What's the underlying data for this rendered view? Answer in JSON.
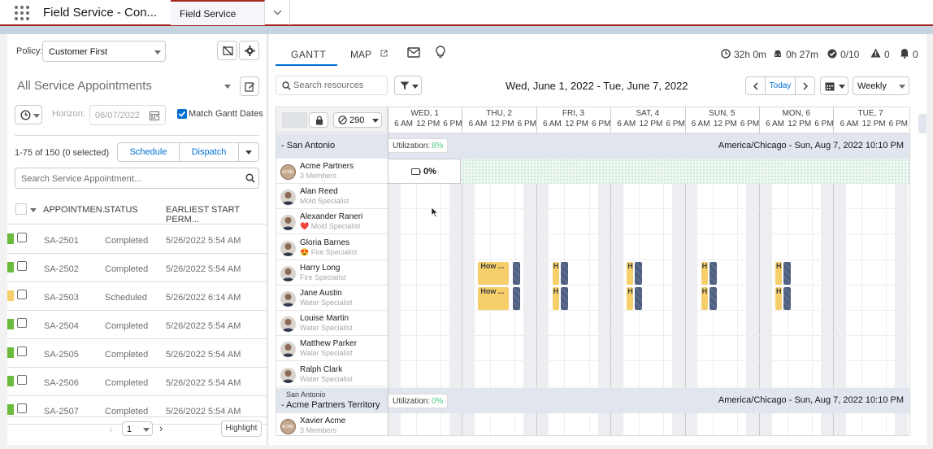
{
  "app": {
    "title": "Field Service - Con...",
    "tab_label": "Field Service"
  },
  "left": {
    "policy_label": "Policy:",
    "policy_value": "Customer First",
    "list_title": "All Service Appointments",
    "horizon_label": "Horizon:",
    "horizon_value": "06/07/2022",
    "match_gantt_label": "Match Gantt Dates",
    "selection_count": "1-75 of 150 (0 selected)",
    "schedule_label": "Schedule",
    "dispatch_label": "Dispatch",
    "search_placeholder": "Search Service Appointment...",
    "columns": [
      "APPOINTMEN...",
      "STATUS",
      "EARLIEST START PERM..."
    ],
    "rows": [
      {
        "id": "SA-2501",
        "status": "Completed",
        "start": "5/26/2022 5:54 AM",
        "color": "#6aba3c"
      },
      {
        "id": "SA-2502",
        "status": "Completed",
        "start": "5/26/2022 5:54 AM",
        "color": "#6aba3c"
      },
      {
        "id": "SA-2503",
        "status": "Scheduled",
        "start": "5/26/2022 6:14 AM",
        "color": "#f6cf6b"
      },
      {
        "id": "SA-2504",
        "status": "Completed",
        "start": "5/26/2022 5:54 AM",
        "color": "#6aba3c"
      },
      {
        "id": "SA-2505",
        "status": "Completed",
        "start": "5/26/2022 5:54 AM",
        "color": "#6aba3c"
      },
      {
        "id": "SA-2506",
        "status": "Completed",
        "start": "5/26/2022 5:54 AM",
        "color": "#6aba3c"
      },
      {
        "id": "SA-2507",
        "status": "Completed",
        "start": "5/26/2022 5:54 AM",
        "color": "#6aba3c"
      }
    ],
    "page_value": "1",
    "highlight_label": "Highlight"
  },
  "right": {
    "tab_gantt": "GANTT",
    "tab_map": "MAP",
    "stat_hours": "32h 0m",
    "stat_travel": "0h 27m",
    "stat_done": "0/10",
    "stat_warn": "0",
    "stat_bell": "0",
    "search_placeholder": "Search resources",
    "date_range": "Wed, June 1, 2022 - Tue, June 7, 2022",
    "today_label": "Today",
    "view_value": "Weekly",
    "resource_count": "290",
    "days": [
      "WED, 1",
      "THU, 2",
      "FRI, 3",
      "SAT, 4",
      "SUN, 5",
      "MON, 6",
      "TUE, 7"
    ],
    "hours": [
      "6 AM",
      "12 PM",
      "6 PM"
    ],
    "group1": {
      "name": "San Antonio",
      "util_label": "Utilization:",
      "util_value": "8%",
      "tz": "America/Chicago - Sun, Aug 7, 2022 10:10 PM"
    },
    "group2": {
      "parent": "San Antonio",
      "name": "Acme Partners Territory",
      "util_label": "Utilization:",
      "util_value": "0%",
      "tz": "America/Chicago - Sun, Aug 7, 2022 10:10 PM"
    },
    "capacity_value": "0%",
    "task_label": "How ...",
    "task_label_short": "H",
    "resources": [
      {
        "name": "Acme Partners",
        "skill": "3 Members",
        "badge": "ACME"
      },
      {
        "name": "Alan Reed",
        "skill": "Mold Specialist"
      },
      {
        "name": "Alexander Raneri",
        "skill": "Mold Specialist",
        "mark": "❤️"
      },
      {
        "name": "Gloria Barnes",
        "skill": "Fire Specialist",
        "mark": "😍"
      },
      {
        "name": "Harry Long",
        "skill": "Fire Specialist"
      },
      {
        "name": "Jane Austin",
        "skill": "Water Specialist"
      },
      {
        "name": "Louise Martin",
        "skill": "Water Specialist"
      },
      {
        "name": "Matthew Parker",
        "skill": "Water Specialist"
      },
      {
        "name": "Ralph Clark",
        "skill": "Water Specialist"
      }
    ],
    "resource2": {
      "name": "Xavier Acme",
      "skill": "3 Members",
      "badge": "ACME"
    }
  },
  "colors": {
    "accent": "#0070d2",
    "completed": "#6aba3c",
    "scheduled": "#f6cf6b",
    "header_border": "#a4261c"
  }
}
